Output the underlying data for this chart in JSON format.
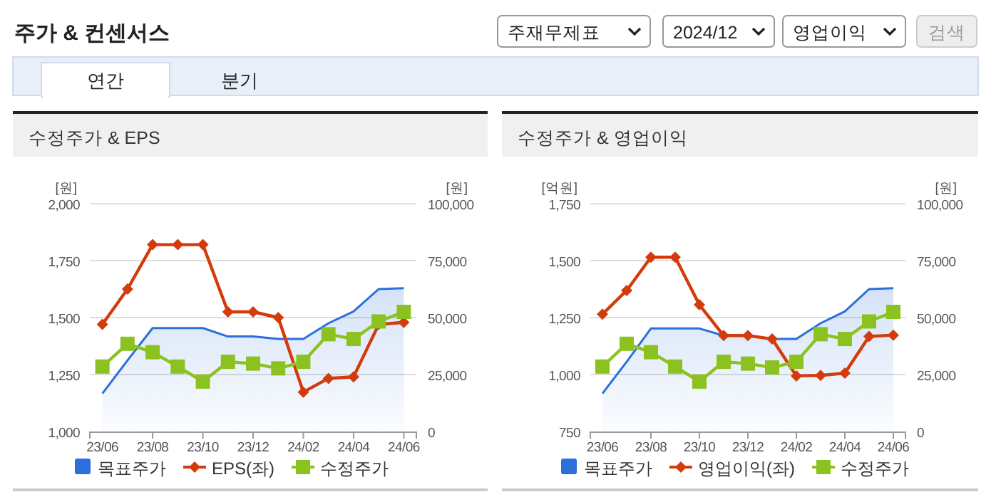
{
  "chart_data": [
    {
      "type": "other",
      "title": "주가 & 컨센서스",
      "annotations": [
        "주재무제표",
        "2024/12",
        "영업이익",
        "검색",
        "연간",
        "분기"
      ]
    },
    {
      "type": "line",
      "title": "수정주가 & EPS",
      "categories": [
        "23/06",
        null,
        "23/08",
        null,
        "23/10",
        null,
        "23/12",
        null,
        "24/02",
        null,
        "24/04",
        null,
        "24/06"
      ],
      "ylabel": "[원]",
      "y2label": "[원]",
      "ylim": [
        1000,
        2000
      ],
      "yticks": [
        {
          "value": 1000,
          "label": "1,000"
        },
        {
          "value": 1250,
          "label": "1,250"
        },
        {
          "value": 1500,
          "label": "1,500"
        },
        {
          "value": 1750,
          "label": "1,750"
        },
        {
          "value": 2000,
          "label": "2,000"
        }
      ],
      "y2lim": [
        0,
        100000
      ],
      "y2ticks": [
        0,
        {
          "value": 25000,
          "label": "25,000"
        },
        {
          "value": 50000,
          "label": "50,000"
        },
        {
          "value": 75000,
          "label": "75,000"
        },
        {
          "value": 100000,
          "label": "100,000"
        }
      ],
      "grid": "y",
      "legend": "bottom",
      "series": [
        {
          "name": "목표주가",
          "type": "area",
          "axis": "y2",
          "color": "#2a6fdb",
          "values": [
            16700,
            31200,
            45400,
            45400,
            45400,
            41700,
            41700,
            40600,
            40600,
            47500,
            52700,
            62500,
            62900
          ]
        },
        {
          "name": "EPS(좌)",
          "type": "line",
          "marker": "diamond",
          "color": "#d33b0c",
          "values": [
            1470,
            1625,
            1820,
            1820,
            1820,
            1525,
            1525,
            1500,
            1173,
            1233,
            1240,
            1470,
            1479
          ]
        },
        {
          "name": "수정주가",
          "type": "line",
          "axis": "y2",
          "marker": "square",
          "color": "#8cc21f",
          "values": [
            28500,
            38500,
            34800,
            28500,
            21900,
            30600,
            29800,
            27700,
            30600,
            42700,
            40600,
            48300,
            52500
          ]
        }
      ]
    },
    {
      "type": "line",
      "title": "수정주가 & 영업이익",
      "categories": [
        "23/06",
        null,
        "23/08",
        null,
        "23/10",
        null,
        "23/12",
        null,
        "24/02",
        null,
        "24/04",
        null,
        "24/06"
      ],
      "ylabel": "[억원]",
      "y2label": "[원]",
      "ylim": [
        750,
        1750
      ],
      "yticks": [
        750,
        {
          "value": 1000,
          "label": "1,000"
        },
        {
          "value": 1250,
          "label": "1,250"
        },
        {
          "value": 1500,
          "label": "1,500"
        },
        {
          "value": 1750,
          "label": "1,750"
        }
      ],
      "y2lim": [
        0,
        100000
      ],
      "y2ticks": [
        0,
        {
          "value": 25000,
          "label": "25,000"
        },
        {
          "value": 50000,
          "label": "50,000"
        },
        {
          "value": 75000,
          "label": "75,000"
        },
        {
          "value": 100000,
          "label": "100,000"
        }
      ],
      "grid": "y",
      "legend": "bottom",
      "series": [
        {
          "name": "목표주가",
          "type": "area",
          "axis": "y2",
          "color": "#2a6fdb",
          "values": [
            16700,
            30600,
            45200,
            45200,
            45200,
            42100,
            42100,
            40600,
            40600,
            47500,
            52700,
            62500,
            62900
          ]
        },
        {
          "name": "영업이익(좌)",
          "type": "line",
          "marker": "diamond",
          "color": "#d33b0c",
          "values": [
            1265,
            1369,
            1515,
            1515,
            1306,
            1171,
            1171,
            1156,
            994,
            996,
            1006,
            1167,
            1173
          ]
        },
        {
          "name": "수정주가",
          "type": "line",
          "axis": "y2",
          "marker": "square",
          "color": "#8cc21f",
          "values": [
            28500,
            38500,
            34800,
            28500,
            21900,
            30600,
            29800,
            28100,
            30600,
            42700,
            40600,
            48300,
            52500
          ]
        }
      ]
    }
  ]
}
